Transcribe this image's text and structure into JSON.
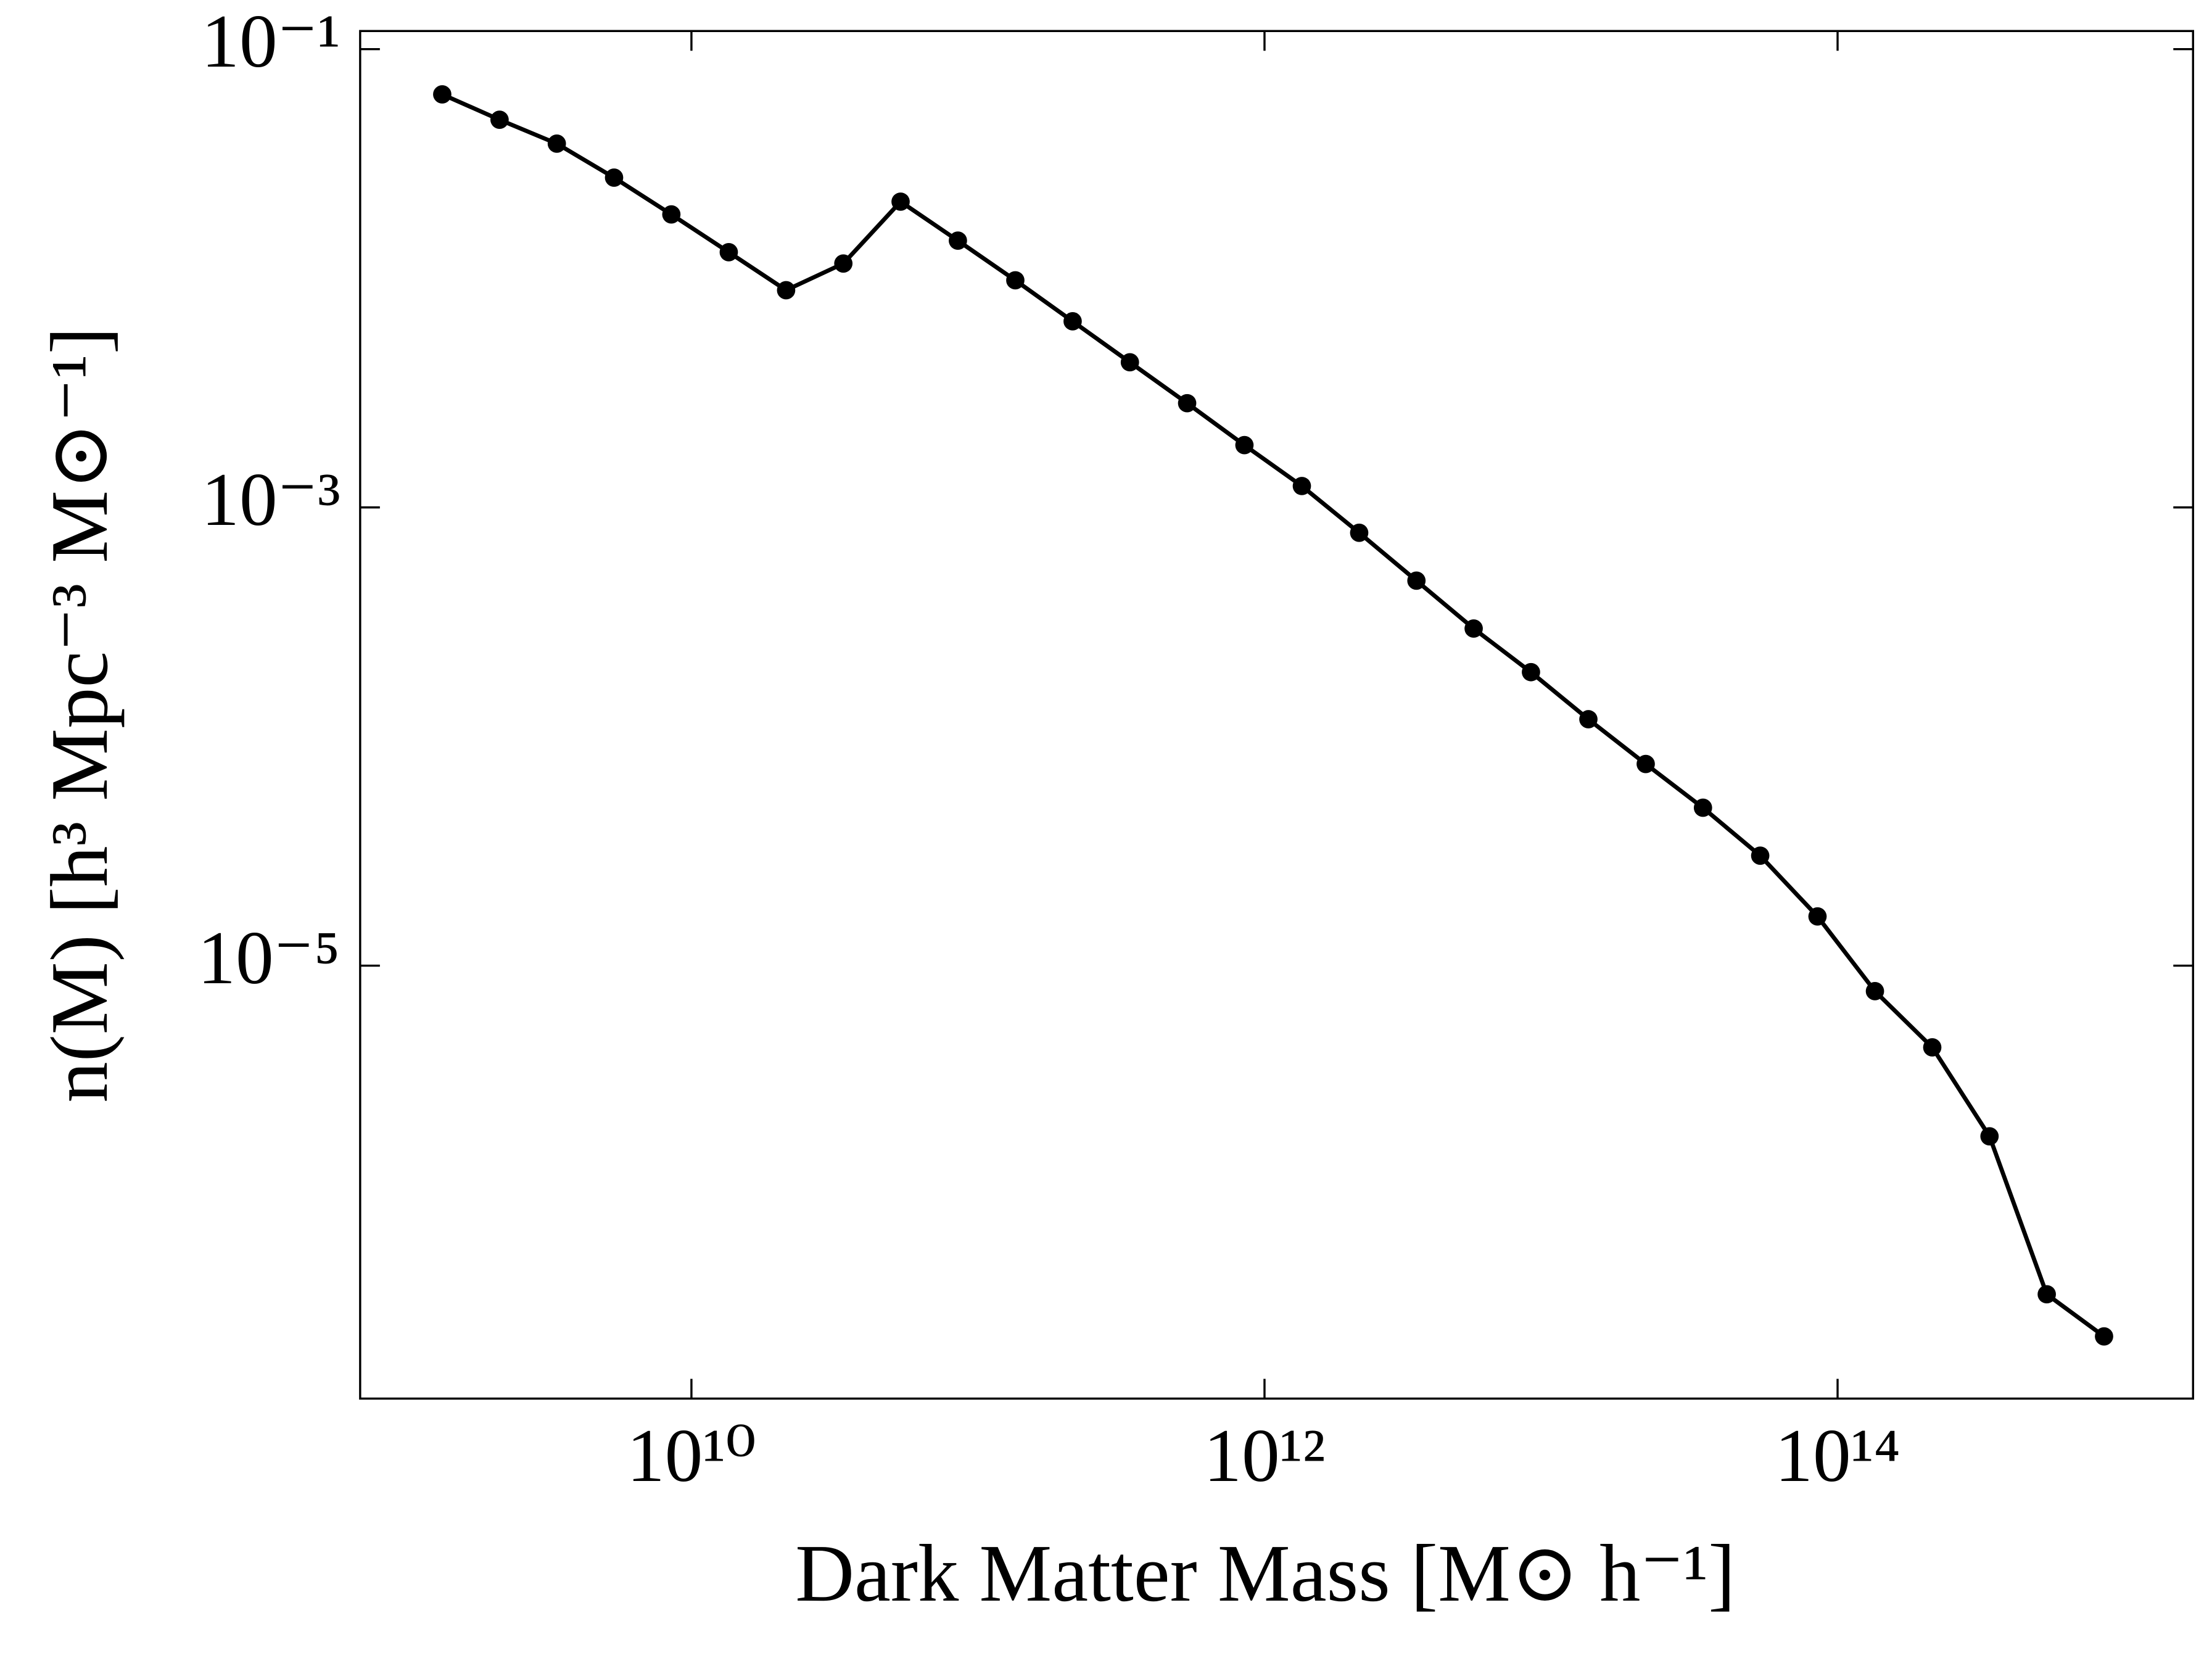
{
  "chart_data": {
    "type": "line",
    "xlabel": "Dark Matter Mass [M⊙ h⁻¹]",
    "ylabel": "n(M) [h³ Mpc⁻³ M⊙⁻¹]",
    "xscale": "log",
    "yscale": "log",
    "x": [
      1350000000.0,
      2140000000.0,
      3390000000.0,
      5370000000.0,
      8510000000.0,
      13500000000.0,
      21400000000.0,
      33900000000.0,
      53700000000.0,
      85100000000.0,
      135000000000.0,
      214000000000.0,
      339000000000.0,
      537000000000.0,
      851000000000.0,
      1350000000000.0,
      2140000000000.0,
      3390000000000.0,
      5370000000000.0,
      8510000000000.0,
      13500000000000.0,
      21400000000000.0,
      33900000000000.0,
      53700000000000.0,
      85100000000000.0,
      135000000000000.0,
      214000000000000.0,
      339000000000000.0,
      537000000000000.0,
      851000000000000.0
    ],
    "series": [
      {
        "color": "#000000",
        "values": [
          0.0635,
          0.0492,
          0.0387,
          0.0275,
          0.019,
          0.013,
          0.00887,
          0.0116,
          0.0216,
          0.0146,
          0.0098,
          0.00649,
          0.0043,
          0.00285,
          0.00187,
          0.00124,
          0.000775,
          0.000479,
          0.000296,
          0.000191,
          0.000119,
          7.59e-05,
          4.89e-05,
          3.02e-05,
          1.64e-05,
          7.74e-06,
          4.4e-06,
          1.8e-06,
          3.68e-07,
          2.41e-07
        ]
      }
    ],
    "xlim": [
      698000000.0,
      1740000000000000.0
    ],
    "ylim": [
      1.29e-07,
      0.12
    ],
    "xticks": [
      {
        "value": 10000000000.0,
        "label": "10¹⁰"
      },
      {
        "value": 1000000000000.0,
        "label": "10¹²"
      },
      {
        "value": 100000000000000.0,
        "label": "10¹⁴"
      }
    ],
    "yticks": [
      {
        "value": 0.1,
        "label": "10⁻¹"
      },
      {
        "value": 0.001,
        "label": "10⁻³"
      },
      {
        "value": 1e-05,
        "label": "10⁻⁵"
      }
    ],
    "grid": false
  }
}
